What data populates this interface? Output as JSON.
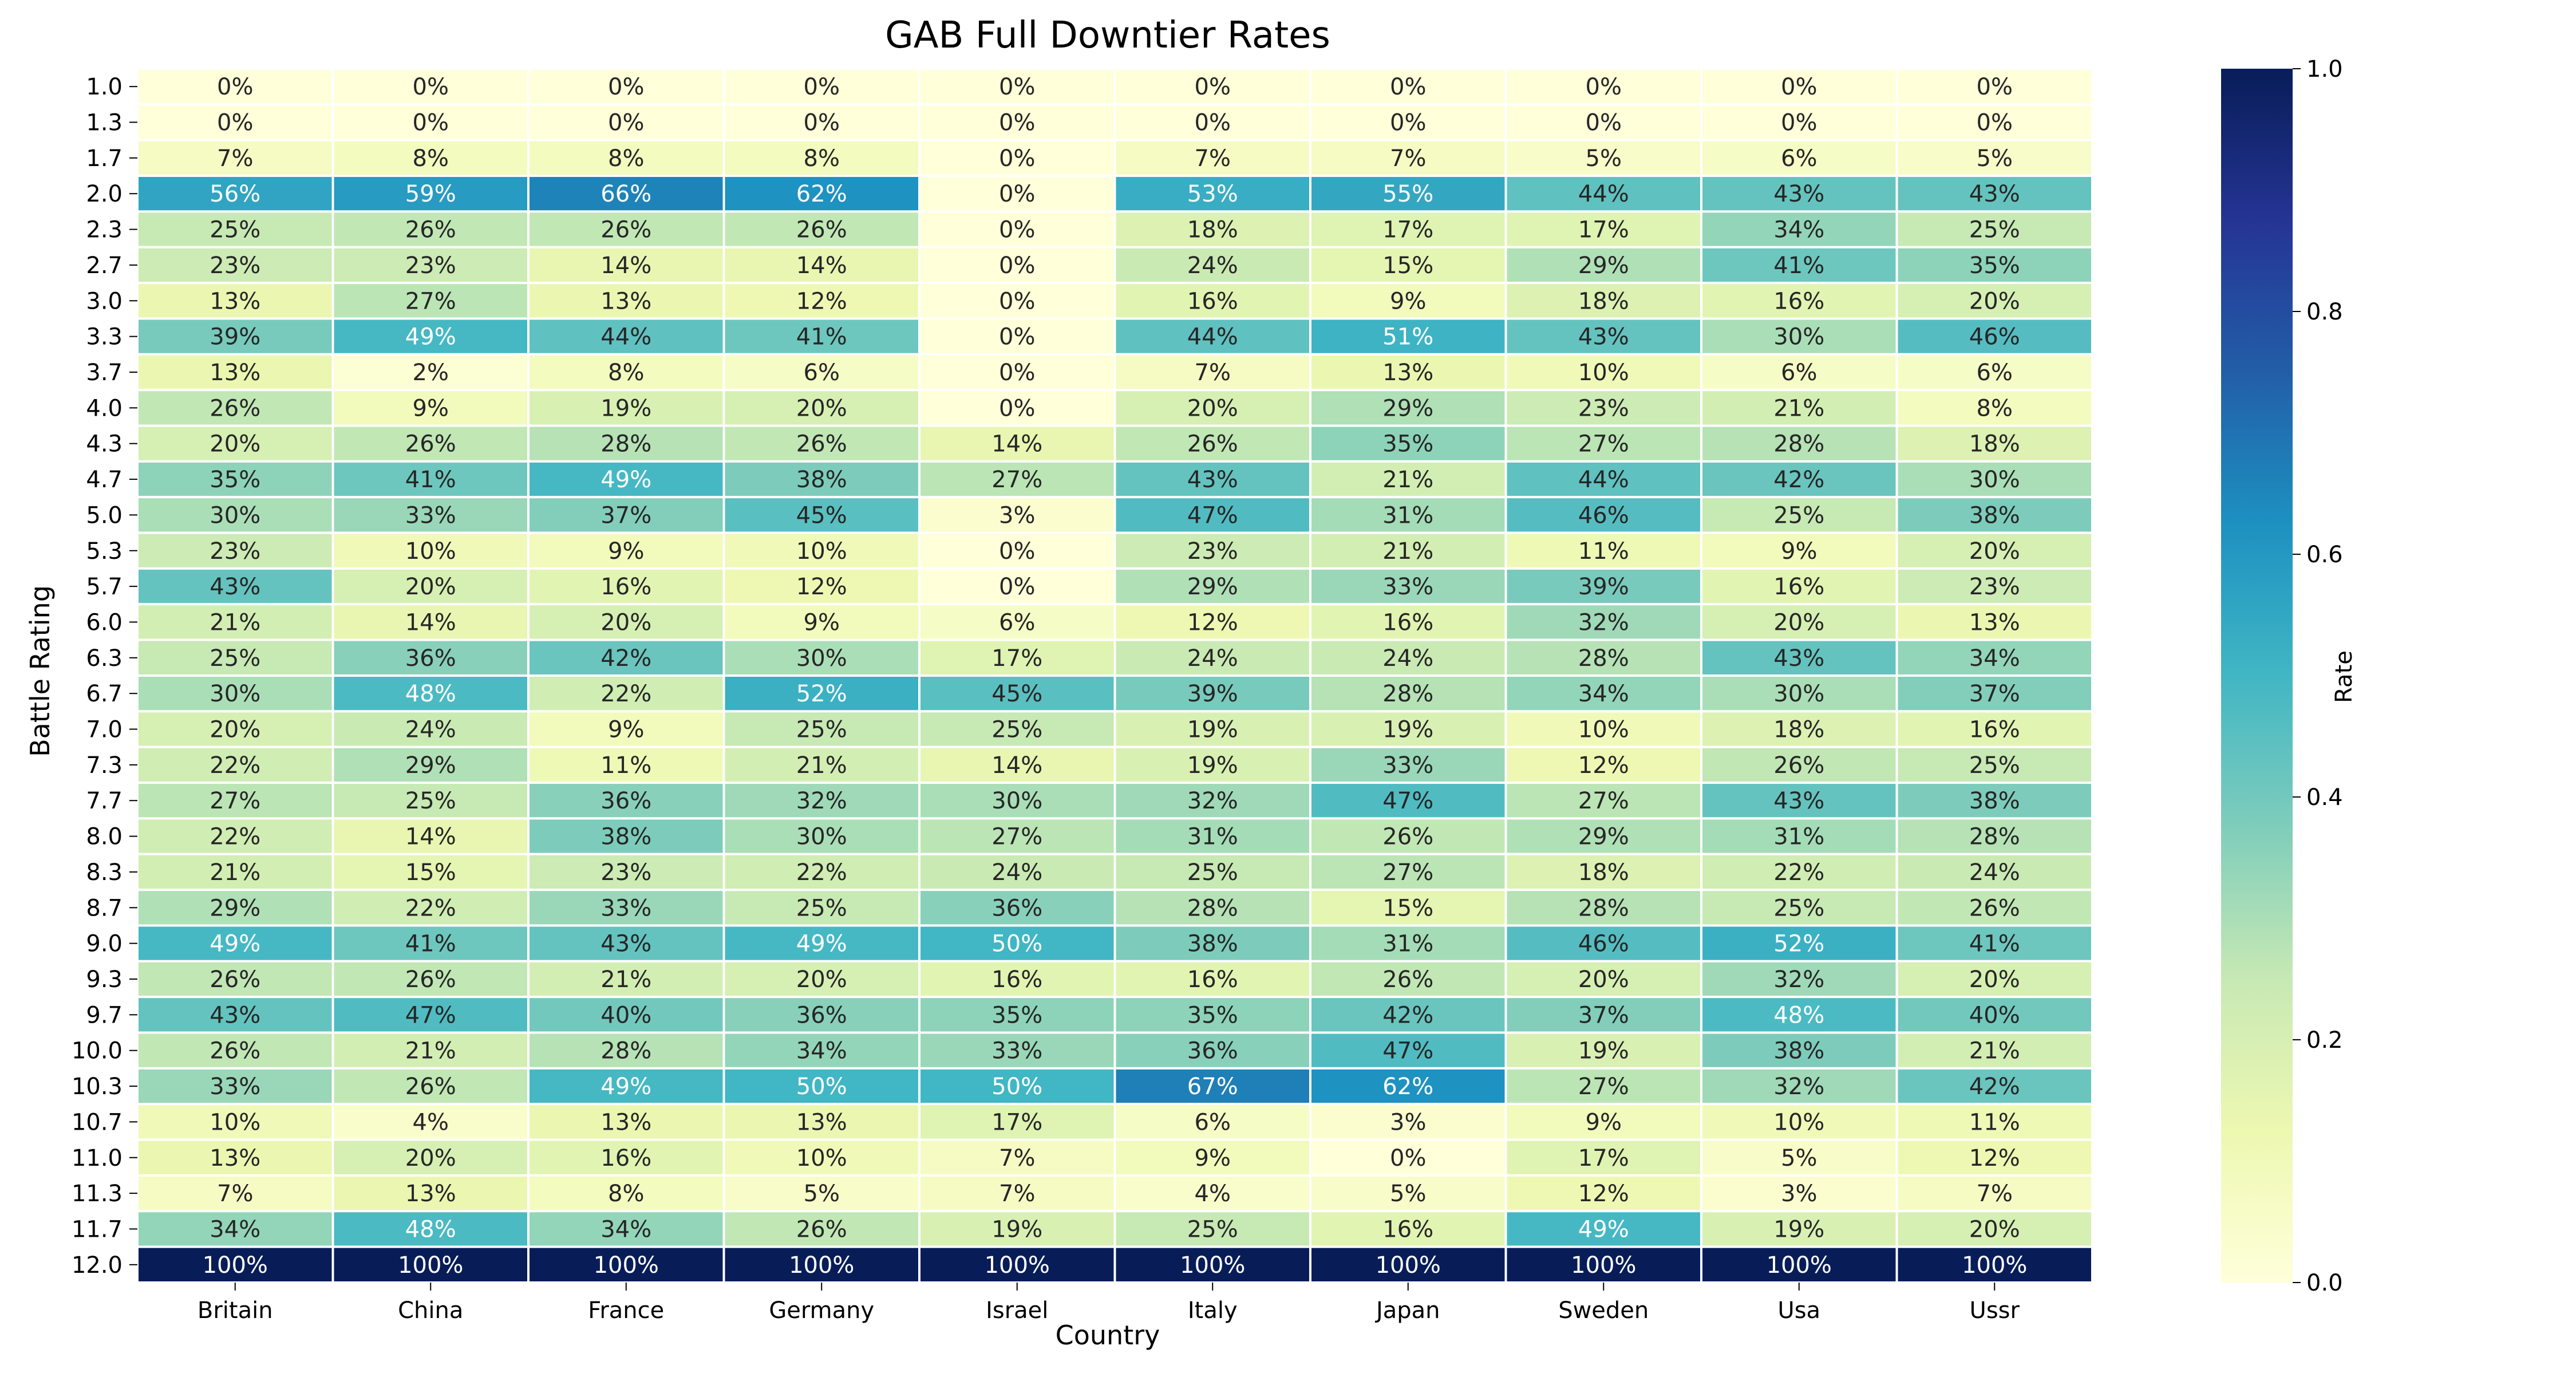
{
  "chart_data": {
    "type": "heatmap",
    "title": "GAB Full Downtier Rates",
    "xlabel": "Country",
    "ylabel": "Battle Rating",
    "colorbar_label": "Rate",
    "colormap": "YlGnBu",
    "value_range": [
      0.0,
      1.0
    ],
    "colorbar_ticks": [
      "0.0",
      "0.2",
      "0.4",
      "0.6",
      "0.8",
      "1.0"
    ],
    "colorbar_tick_values": [
      0.0,
      0.2,
      0.4,
      0.6,
      0.8,
      1.0
    ],
    "columns": [
      "Britain",
      "China",
      "France",
      "Germany",
      "Israel",
      "Italy",
      "Japan",
      "Sweden",
      "Usa",
      "Ussr"
    ],
    "rows": [
      "1.0",
      "1.3",
      "1.7",
      "2.0",
      "2.3",
      "2.7",
      "3.0",
      "3.3",
      "3.7",
      "4.0",
      "4.3",
      "4.7",
      "5.0",
      "5.3",
      "5.7",
      "6.0",
      "6.3",
      "6.7",
      "7.0",
      "7.3",
      "7.7",
      "8.0",
      "8.3",
      "8.7",
      "9.0",
      "9.3",
      "9.7",
      "10.0",
      "10.3",
      "10.7",
      "11.0",
      "11.3",
      "11.7",
      "12.0"
    ],
    "values": [
      [
        0,
        0,
        0,
        0,
        0,
        0,
        0,
        0,
        0,
        0
      ],
      [
        0,
        0,
        0,
        0,
        0,
        0,
        0,
        0,
        0,
        0
      ],
      [
        7,
        8,
        8,
        8,
        0,
        7,
        7,
        5,
        6,
        5
      ],
      [
        56,
        59,
        66,
        62,
        0,
        53,
        55,
        44,
        43,
        43
      ],
      [
        25,
        26,
        26,
        26,
        0,
        18,
        17,
        17,
        34,
        25
      ],
      [
        23,
        23,
        14,
        14,
        0,
        24,
        15,
        29,
        41,
        35
      ],
      [
        13,
        27,
        13,
        12,
        0,
        16,
        9,
        18,
        16,
        20
      ],
      [
        39,
        49,
        44,
        41,
        0,
        44,
        51,
        43,
        30,
        46
      ],
      [
        13,
        2,
        8,
        6,
        0,
        7,
        13,
        10,
        6,
        6
      ],
      [
        26,
        9,
        19,
        20,
        0,
        20,
        29,
        23,
        21,
        8
      ],
      [
        20,
        26,
        28,
        26,
        14,
        26,
        35,
        27,
        28,
        18
      ],
      [
        35,
        41,
        49,
        38,
        27,
        43,
        21,
        44,
        42,
        30
      ],
      [
        30,
        33,
        37,
        45,
        3,
        47,
        31,
        46,
        25,
        38
      ],
      [
        23,
        10,
        9,
        10,
        0,
        23,
        21,
        11,
        9,
        20
      ],
      [
        43,
        20,
        16,
        12,
        0,
        29,
        33,
        39,
        16,
        23
      ],
      [
        21,
        14,
        20,
        9,
        6,
        12,
        16,
        32,
        20,
        13
      ],
      [
        25,
        36,
        42,
        30,
        17,
        24,
        24,
        28,
        43,
        34
      ],
      [
        30,
        48,
        22,
        52,
        45,
        39,
        28,
        34,
        30,
        37
      ],
      [
        20,
        24,
        9,
        25,
        25,
        19,
        19,
        10,
        18,
        16
      ],
      [
        22,
        29,
        11,
        21,
        14,
        19,
        33,
        12,
        26,
        25
      ],
      [
        27,
        25,
        36,
        32,
        30,
        32,
        47,
        27,
        43,
        38
      ],
      [
        22,
        14,
        38,
        30,
        27,
        31,
        26,
        29,
        31,
        28
      ],
      [
        21,
        15,
        23,
        22,
        24,
        25,
        27,
        18,
        22,
        24
      ],
      [
        29,
        22,
        33,
        25,
        36,
        28,
        15,
        28,
        25,
        26
      ],
      [
        49,
        41,
        43,
        49,
        50,
        38,
        31,
        46,
        52,
        41
      ],
      [
        26,
        26,
        21,
        20,
        16,
        16,
        26,
        20,
        32,
        20
      ],
      [
        43,
        47,
        40,
        36,
        35,
        35,
        42,
        37,
        48,
        40
      ],
      [
        26,
        21,
        28,
        34,
        33,
        36,
        47,
        19,
        38,
        21
      ],
      [
        33,
        26,
        49,
        50,
        50,
        67,
        62,
        27,
        32,
        42
      ],
      [
        10,
        4,
        13,
        13,
        17,
        6,
        3,
        9,
        10,
        11
      ],
      [
        13,
        20,
        16,
        10,
        7,
        9,
        0,
        17,
        5,
        12
      ],
      [
        7,
        13,
        8,
        5,
        7,
        4,
        5,
        12,
        3,
        7
      ],
      [
        34,
        48,
        34,
        26,
        19,
        25,
        16,
        49,
        19,
        20
      ],
      [
        100,
        100,
        100,
        100,
        100,
        100,
        100,
        100,
        100,
        100
      ]
    ],
    "value_format": "percent",
    "grid": true
  }
}
